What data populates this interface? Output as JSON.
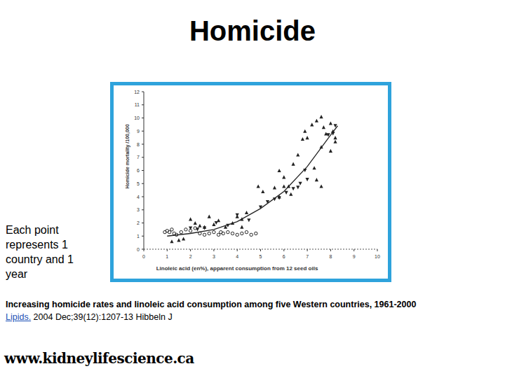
{
  "chart_data": {
    "type": "scatter",
    "x_label": "Linoleic acid (en%), apparent consumption from 12 seed oils",
    "y_label": "Homicide mortality /100,000",
    "xlim": [
      0,
      10
    ],
    "ylim": [
      0,
      12
    ],
    "xticks": [
      0,
      1,
      2,
      3,
      4,
      5,
      6,
      7,
      8,
      9,
      10
    ],
    "yticks": [
      0,
      1,
      2,
      3,
      4,
      5,
      6,
      7,
      8,
      9,
      10,
      11,
      12
    ],
    "grid": false,
    "series": [
      {
        "marker": "circle",
        "color": "#222222",
        "x": [
          1.0,
          1.1,
          1.2,
          1.3,
          0.9,
          1.4,
          1.6,
          1.8,
          2.0,
          2.2,
          2.6,
          2.8,
          3.0,
          3.2,
          3.4,
          3.6,
          3.8,
          4.0,
          4.2,
          4.4,
          4.6,
          4.8,
          3.3,
          2.4
        ],
        "values": [
          1.4,
          1.3,
          1.5,
          1.2,
          1.3,
          1.1,
          1.3,
          1.5,
          1.4,
          1.6,
          1.1,
          1.2,
          1.3,
          1.1,
          1.2,
          1.3,
          1.2,
          1.1,
          1.2,
          1.3,
          1.1,
          1.2,
          1.3,
          1.2
        ]
      },
      {
        "marker": "triangle",
        "color": "#222222",
        "x": [
          1.2,
          1.5,
          1.7,
          2.0,
          2.2,
          2.4,
          2.6,
          2.8,
          3.0,
          3.2,
          3.5,
          3.8,
          4.0,
          4.2,
          4.4,
          4.2,
          4.9,
          5.1,
          5.6,
          5.8,
          6.0,
          6.2,
          6.4,
          6.6,
          6.8,
          6.9,
          7.0,
          7.2,
          7.4,
          7.6,
          7.7,
          7.8,
          8.0,
          8.1,
          8.2,
          8.0,
          7.6,
          7.3,
          7.4,
          7.6,
          8.2,
          6.0,
          6.3,
          5.8
        ],
        "values": [
          0.6,
          0.7,
          0.8,
          2.3,
          2.0,
          1.8,
          1.7,
          2.5,
          1.9,
          2.2,
          1.7,
          2.0,
          2.5,
          2.3,
          2.8,
          1.7,
          4.8,
          4.4,
          4.7,
          6.0,
          5.5,
          4.8,
          6.5,
          7.2,
          8.4,
          9.0,
          8.5,
          9.5,
          9.8,
          10.1,
          9.3,
          8.8,
          9.6,
          9.0,
          8.5,
          7.5,
          7.8,
          6.2,
          5.3,
          4.8,
          8.2,
          4.8,
          4.2,
          4.0
        ]
      },
      {
        "marker": "triangle-down",
        "color": "#222222",
        "x": [
          2.0,
          2.3,
          2.6,
          3.1,
          3.6,
          4.0,
          4.5,
          5.0,
          5.3,
          5.6,
          5.8,
          6.1,
          6.4,
          6.7,
          6.6,
          7.0,
          6.9,
          7.9,
          8.2,
          8.1
        ],
        "values": [
          1.6,
          1.5,
          1.6,
          2.0,
          1.8,
          2.6,
          2.2,
          3.2,
          3.6,
          3.8,
          3.9,
          4.3,
          4.6,
          5.0,
          4.7,
          5.3,
          6.0,
          8.7,
          9.4,
          8.8
        ]
      },
      {
        "type": "line",
        "line_style": "solid",
        "color": "#222222",
        "x": [
          1,
          2,
          3,
          4,
          5,
          6,
          7,
          8,
          8.3
        ],
        "values": [
          1.0,
          1.2,
          1.5,
          2.1,
          3.1,
          4.4,
          6.3,
          8.7,
          9.4
        ]
      }
    ]
  },
  "page": {
    "title": "Homicide",
    "note": "Each point represents 1 country and 1 year",
    "caption": "Increasing homicide rates and linoleic acid consumption among five Western countries, 1961-2000",
    "citation_link": "Lipids.",
    "citation_rest": " 2004 Dec;39(12):1207-13 Hibbeln J",
    "website": "www.kidneylifescience.ca"
  }
}
